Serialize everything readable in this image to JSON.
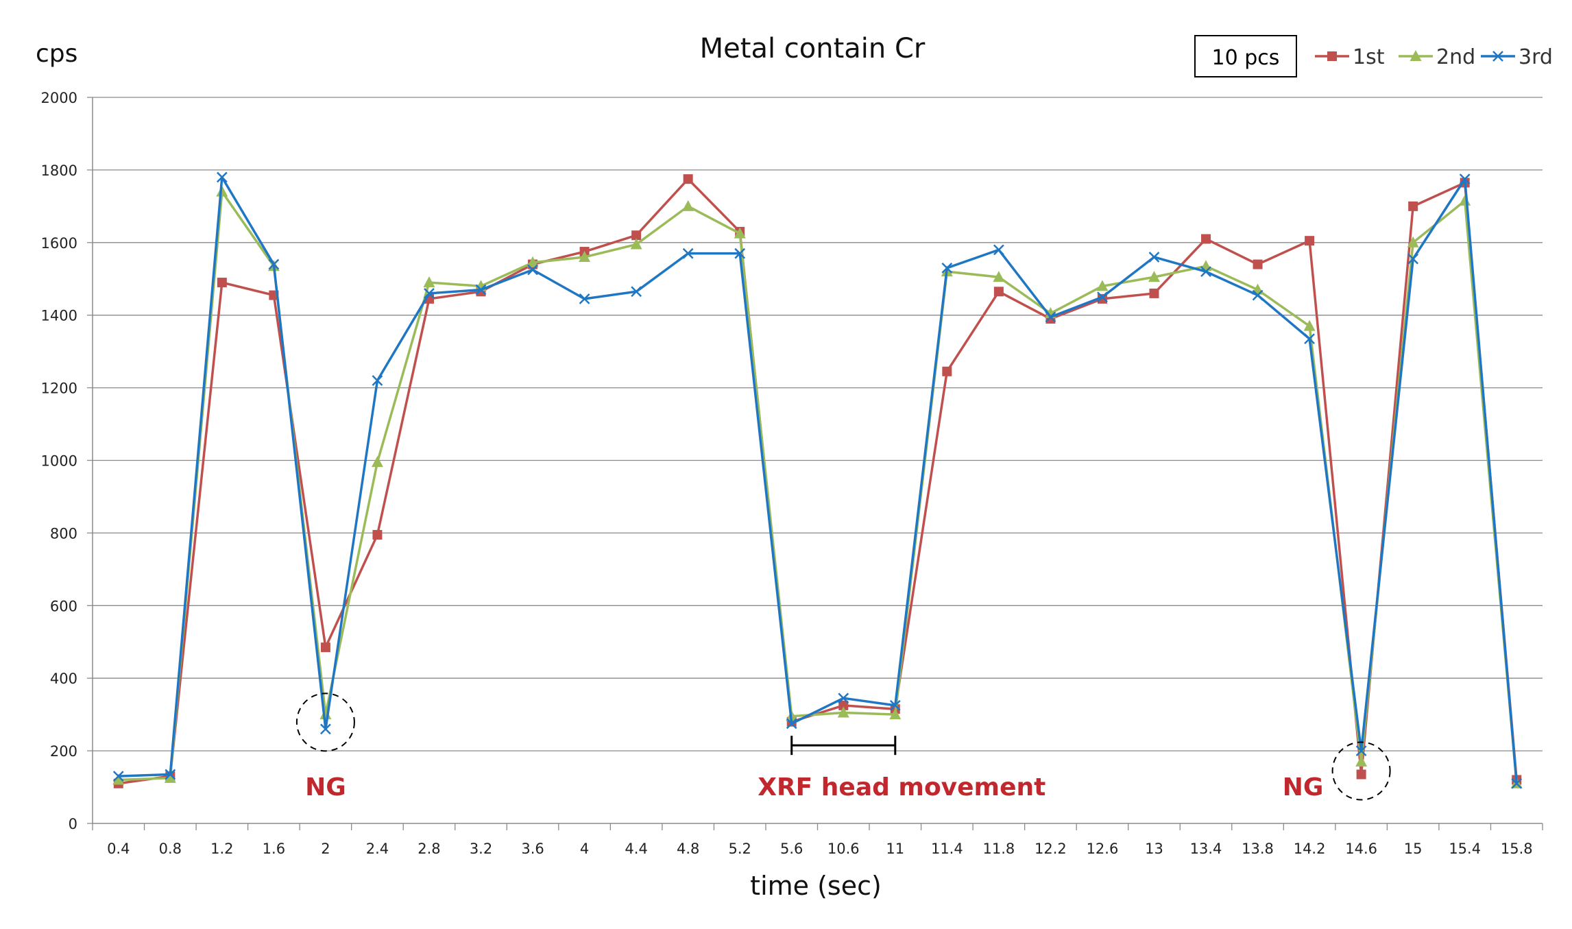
{
  "chart_data": {
    "type": "line",
    "title": "Metal contain Cr",
    "ylabel": "cps",
    "xlabel": "time (sec)",
    "ylim": [
      0,
      2000
    ],
    "yticks": [
      0,
      200,
      400,
      600,
      800,
      1000,
      1200,
      1400,
      1600,
      1800,
      2000
    ],
    "grid": "horizontal",
    "legend_position": "top-right",
    "categories": [
      "0.4",
      "0.8",
      "1.2",
      "1.6",
      "2",
      "2.4",
      "2.8",
      "3.2",
      "3.6",
      "4",
      "4.4",
      "4.8",
      "5.2",
      "5.6",
      "10.6",
      "11",
      "11.4",
      "11.8",
      "12.2",
      "12.6",
      "13",
      "13.4",
      "13.8",
      "14.2",
      "14.6",
      "15",
      "15.4",
      "15.8"
    ],
    "series": [
      {
        "name": "1st",
        "color": "#c0504d",
        "marker": "square",
        "values": [
          110,
          130,
          1490,
          1455,
          485,
          795,
          1445,
          1465,
          1540,
          1575,
          1620,
          1775,
          1630,
          280,
          325,
          315,
          1245,
          1465,
          1390,
          1445,
          1460,
          1610,
          1540,
          1605,
          135,
          1700,
          1765,
          120
        ]
      },
      {
        "name": "2nd",
        "color": "#9bbb59",
        "marker": "triangle",
        "values": [
          120,
          125,
          1740,
          1535,
          300,
          995,
          1490,
          1480,
          1545,
          1560,
          1595,
          1700,
          1625,
          295,
          305,
          300,
          1520,
          1505,
          1405,
          1480,
          1505,
          1535,
          1470,
          1370,
          170,
          1600,
          1715,
          110
        ]
      },
      {
        "name": "3rd",
        "color": "#1f77c4",
        "marker": "x",
        "values": [
          130,
          135,
          1780,
          1540,
          260,
          1220,
          1460,
          1470,
          1525,
          1445,
          1465,
          1570,
          1570,
          275,
          345,
          325,
          1530,
          1580,
          1395,
          1450,
          1560,
          1520,
          1455,
          1335,
          200,
          1555,
          1775,
          110
        ]
      }
    ],
    "legend_note": "10 pcs",
    "annotations": [
      {
        "text": "NG",
        "category": "2",
        "value": 260,
        "circled": true
      },
      {
        "text": "XRF head movement",
        "from": "5.6",
        "to": "11",
        "value": 215
      },
      {
        "text": "NG",
        "category": "14.6",
        "value": 135,
        "circled": true
      }
    ],
    "annotation_color": "#c0282d"
  }
}
